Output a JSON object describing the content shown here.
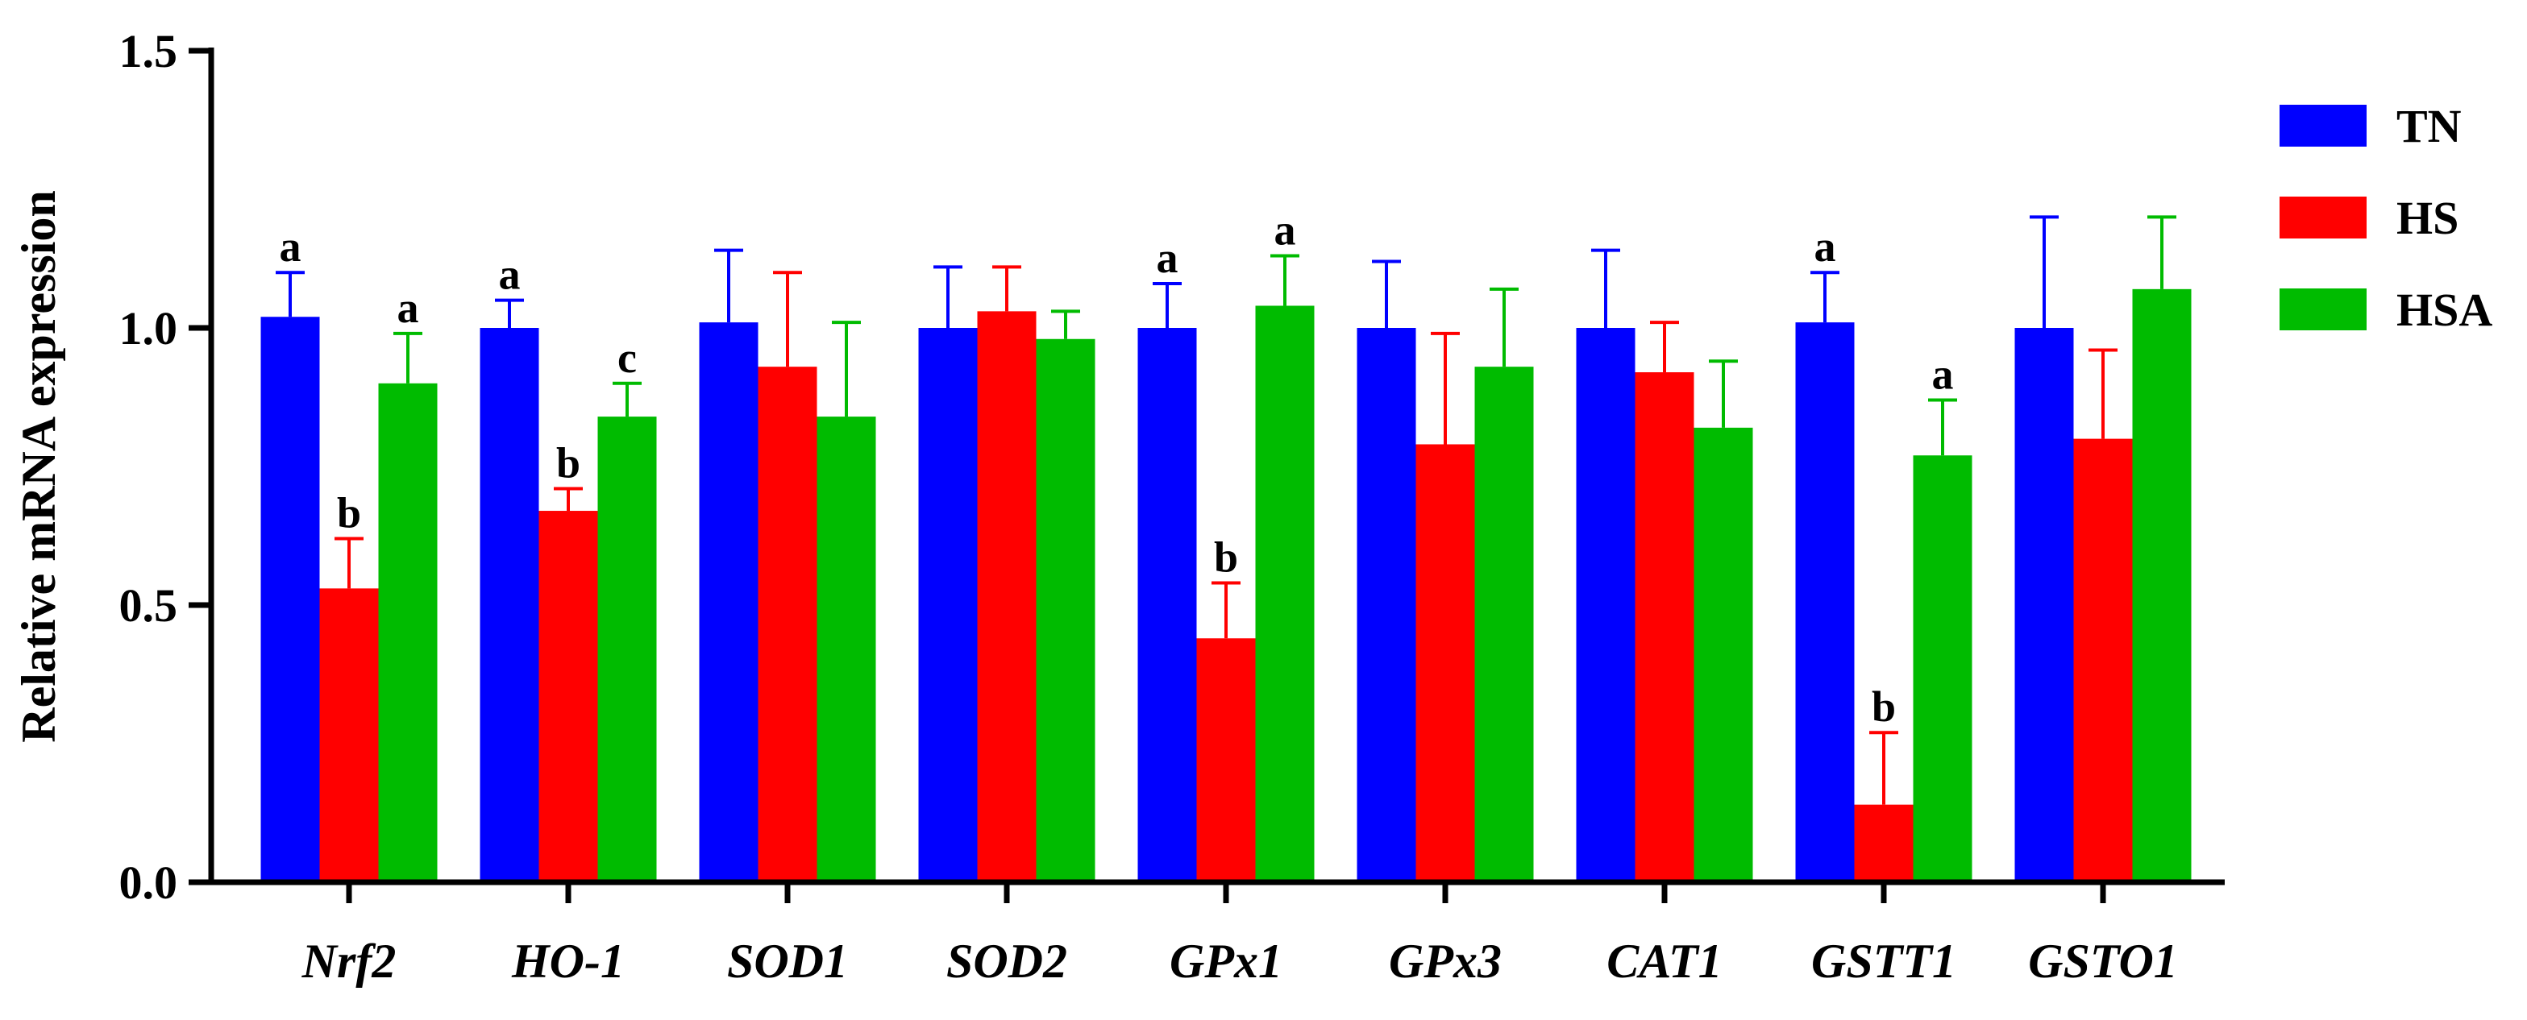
{
  "chart_data": {
    "type": "bar",
    "title": "",
    "xlabel": "",
    "ylabel": "Relative mRNA expression",
    "ylim": [
      0,
      1.5
    ],
    "yticks": [
      "0.0",
      "0.5",
      "1.0",
      "1.5"
    ],
    "ytick_values": [
      0,
      0.5,
      1.0,
      1.5
    ],
    "grid": false,
    "legend_position": "top-right",
    "categories": [
      "Nrf2",
      "HO-1",
      "SOD1",
      "SOD2",
      "GPx1",
      "GPx3",
      "CAT1",
      "GSTT1",
      "GSTO1"
    ],
    "series": [
      {
        "name": "TN",
        "color": "#0000ff",
        "values": [
          1.02,
          1.0,
          1.01,
          1.0,
          1.0,
          1.0,
          1.0,
          1.01,
          1.0
        ],
        "errors": [
          0.08,
          0.05,
          0.13,
          0.11,
          0.08,
          0.12,
          0.14,
          0.09,
          0.2
        ],
        "labels": [
          "a",
          "a",
          "",
          "",
          "a",
          "",
          "",
          "a",
          ""
        ]
      },
      {
        "name": "HS",
        "color": "#ff0000",
        "values": [
          0.53,
          0.67,
          0.93,
          1.03,
          0.44,
          0.79,
          0.92,
          0.14,
          0.8
        ],
        "errors": [
          0.09,
          0.04,
          0.17,
          0.08,
          0.1,
          0.2,
          0.09,
          0.13,
          0.16
        ],
        "labels": [
          "b",
          "b",
          "",
          "",
          "b",
          "",
          "",
          "b",
          ""
        ]
      },
      {
        "name": "HSA",
        "color": "#00bb00",
        "values": [
          0.9,
          0.84,
          0.84,
          0.98,
          1.04,
          0.93,
          0.82,
          0.77,
          1.07
        ],
        "errors": [
          0.09,
          0.06,
          0.17,
          0.05,
          0.09,
          0.14,
          0.12,
          0.1,
          0.13
        ],
        "labels": [
          "a",
          "c",
          "",
          "",
          "a",
          "",
          "",
          "a",
          ""
        ]
      }
    ]
  }
}
